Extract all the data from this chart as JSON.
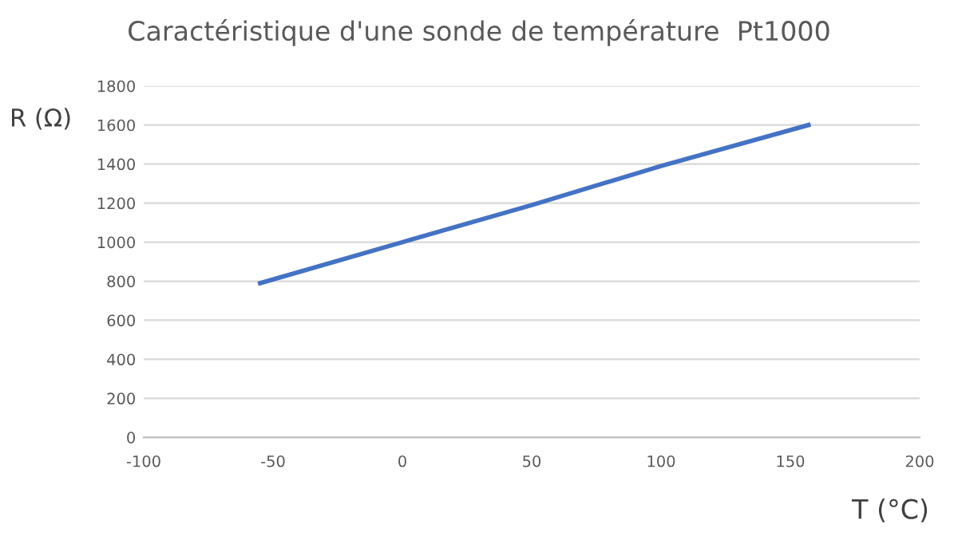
{
  "chart_data": {
    "type": "line",
    "title": "Caractéristique d'une sonde de température  Pt1000",
    "xlabel": "T (°C)",
    "ylabel": "R (Ω)",
    "series": [
      {
        "color": "#4472c4",
        "x": [
          -55,
          0,
          50,
          100,
          157
        ],
        "values": [
          790,
          1000,
          1190,
          1390,
          1600
        ]
      }
    ],
    "xlim": [
      -100,
      200
    ],
    "xticks": [
      -100,
      -50,
      0,
      50,
      100,
      150,
      200
    ],
    "ylim": [
      0,
      1800
    ],
    "yticks": [
      0,
      200,
      400,
      600,
      800,
      1000,
      1200,
      1400,
      1600,
      1800
    ],
    "grid": "y",
    "legend": false,
    "marker": "none",
    "line_style": "solid"
  }
}
